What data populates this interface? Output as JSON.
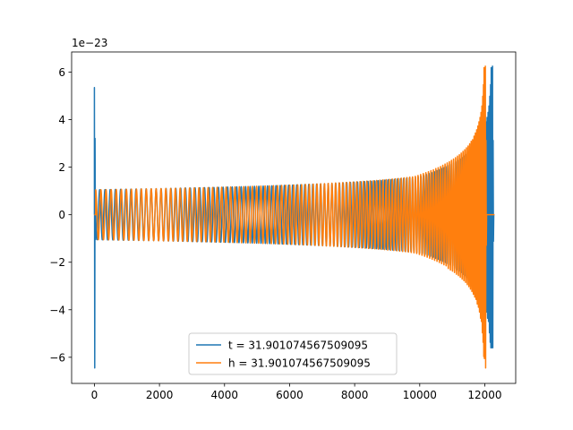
{
  "chart_data": {
    "type": "line",
    "title": "",
    "xlabel": "",
    "ylabel": "",
    "y_offset_label": "1e−23",
    "xlim": [
      -700,
      12950
    ],
    "ylim": [
      -7.1,
      6.85
    ],
    "x_ticks": [
      0,
      2000,
      4000,
      6000,
      8000,
      10000,
      12000
    ],
    "y_ticks": [
      -6,
      -4,
      -2,
      0,
      2,
      4,
      6
    ],
    "x_tick_labels": [
      "0",
      "2000",
      "4000",
      "6000",
      "8000",
      "10000",
      "12000"
    ],
    "y_tick_labels": [
      "−6",
      "−4",
      "−2",
      "0",
      "2",
      "4",
      "6"
    ],
    "grid": false,
    "legend_position": "lower center",
    "series": [
      {
        "name": "t = 31.901074567509095",
        "color": "#1f77b4",
        "x_start": 0,
        "x_end": 12290,
        "start_burst_amplitude": [
          5.35,
          -6.45
        ],
        "baseline_amplitude": 1.05,
        "chirp_start_x": 0,
        "chirp_end_x": 12230,
        "merger_peak": [
          6.25,
          -5.6
        ],
        "ringdown_end_x": 12290
      },
      {
        "name": "h = 31.901074567509095",
        "color": "#ff7f0e",
        "x_start": 0,
        "x_end": 12300,
        "start_burst_amplitude": [
          0,
          0
        ],
        "baseline_amplitude": 1.05,
        "chirp_start_x": 40,
        "chirp_end_x": 12010,
        "merger_peak": [
          6.25,
          -6.45
        ],
        "ringdown_end_x": 12060
      }
    ]
  }
}
